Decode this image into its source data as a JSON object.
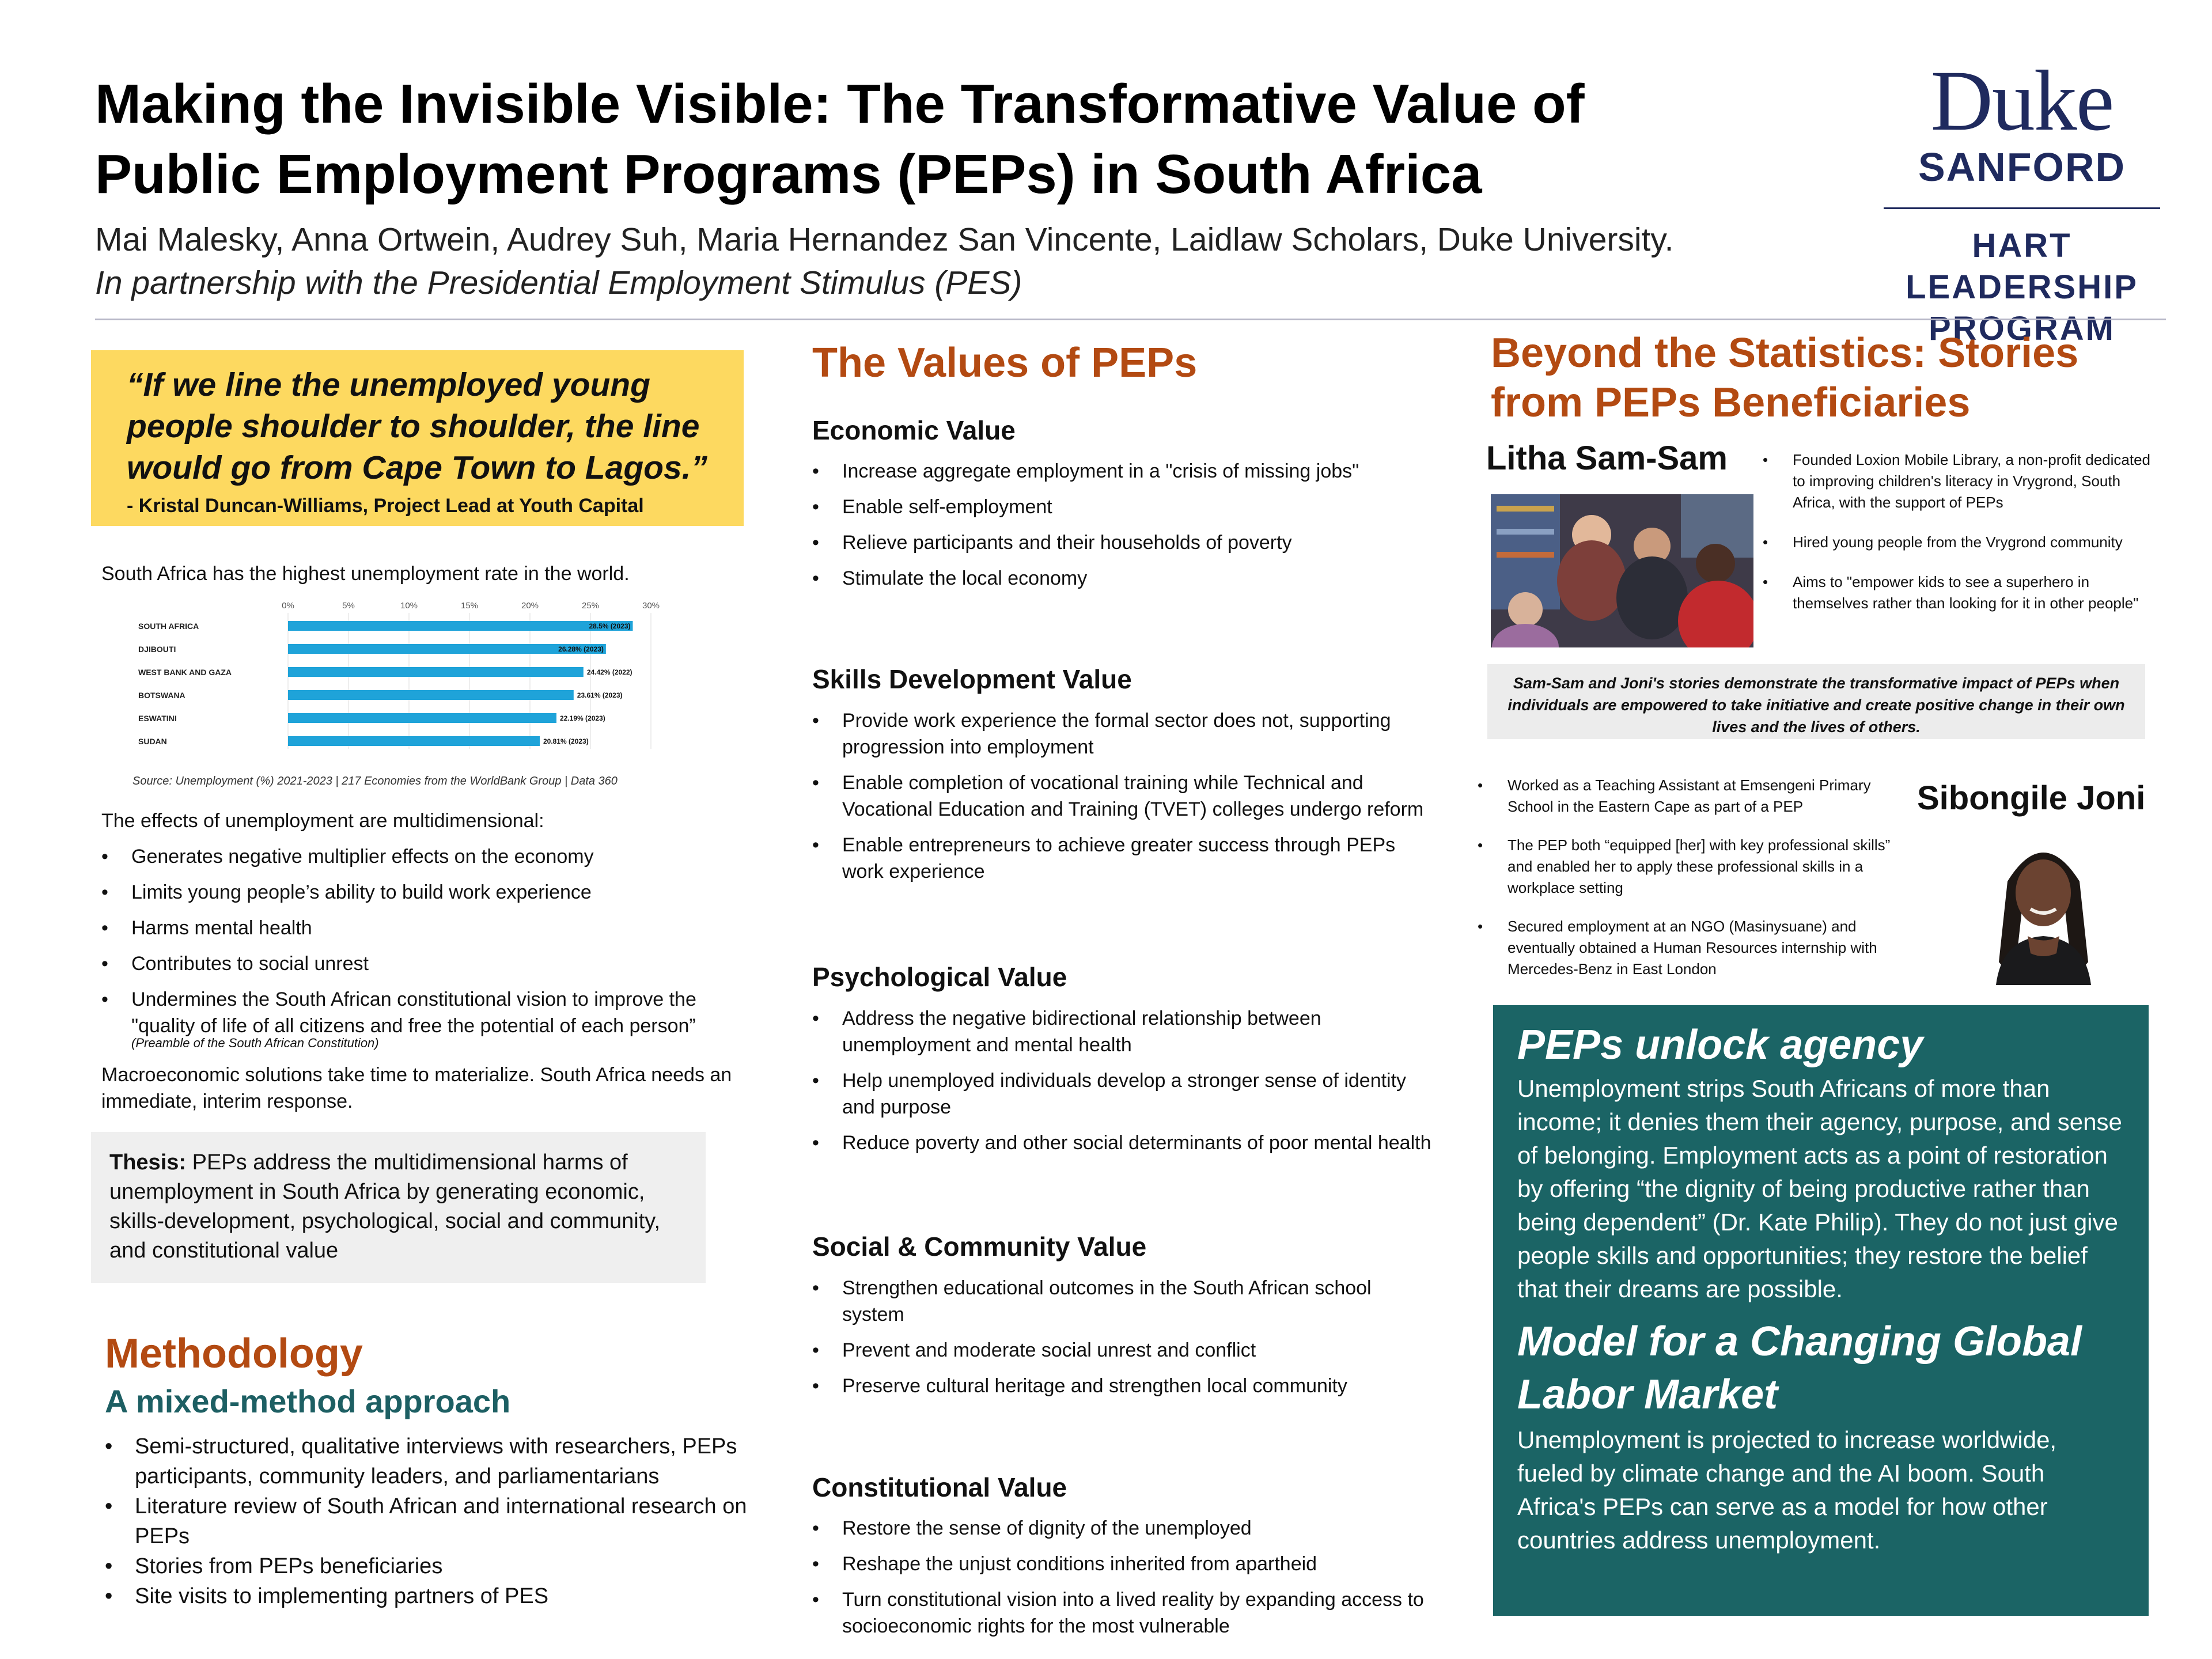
{
  "header": {
    "title": "Making the Invisible Visible: The Transformative Value of Public Employment Programs (PEPs) in South Africa",
    "authors": "Mai Malesky, Anna Ortwein, Audrey Suh, Maria Hernandez San Vincente, Laidlaw Scholars, Duke University.",
    "partnership": "In partnership with the Presidential Employment Stimulus (PES)"
  },
  "logo": {
    "duke": "Duke",
    "sanford": "SANFORD",
    "program_line1": "HART LEADERSHIP",
    "program_line2": "PROGRAM",
    "color": "#1f2a5e"
  },
  "left": {
    "quote": "“If we line the unemployed young people shoulder to shoulder, the line would go from Cape Town to Lagos.”",
    "quote_attribution": "- Kristal Duncan-Williams, Project Lead at Youth Capital",
    "intro": "South Africa has the highest unemployment rate in the world.",
    "chart_source": "Source: Unemployment (%) 2021-2023 | 217 Economies from the WorldBank Group | Data 360",
    "effects_intro": "The effects of unemployment are multidimensional:",
    "effects": [
      "Generates negative multiplier effects on the economy",
      "Limits young people’s ability to build work experience",
      "Harms mental health",
      "Contributes to social unrest",
      "Undermines the South African constitutional vision to improve the \"quality of life of all citizens and free the potential of each person”"
    ],
    "constitution_note": "(Preamble of the South African Constitution)",
    "macro": "Macroeconomic solutions take time to materialize. South Africa needs an immediate, interim response.",
    "thesis_label": "Thesis:",
    "thesis_text": " PEPs address the multidimensional harms of unemployment in South Africa by generating economic, skills-development, psychological, social and community, and constitutional value",
    "methodology_heading": "Methodology",
    "methodology_sub": "A mixed-method approach",
    "methods": [
      "Semi-structured, qualitative interviews with researchers, PEPs participants, community leaders, and parliamentarians",
      "Literature review of South African and international research on PEPs",
      "Stories from PEPs beneficiaries",
      "Site visits to implementing partners of PES"
    ],
    "colors": {
      "quote_bg": "#fdd960",
      "heading_orange": "#b34a12",
      "heading_teal": "#1d5f63",
      "bar": "#1fa3d9"
    }
  },
  "chart_data": {
    "type": "bar",
    "orientation": "horizontal",
    "categories": [
      "SOUTH AFRICA",
      "DJIBOUTI",
      "WEST BANK AND GAZA",
      "BOTSWANA",
      "ESWATINI",
      "SUDAN"
    ],
    "values": [
      28.5,
      26.28,
      24.42,
      23.61,
      22.19,
      20.81
    ],
    "data_labels": [
      "28.5% (2023)",
      "26.28% (2023)",
      "24.42% (2022)",
      "23.61% (2023)",
      "22.19% (2023)",
      "20.81% (2023)"
    ],
    "xticks": [
      "0%",
      "5%",
      "10%",
      "15%",
      "20%",
      "25%",
      "30%"
    ],
    "xlim": [
      0,
      30
    ],
    "title": "",
    "xlabel": "",
    "ylabel": ""
  },
  "middle": {
    "heading": "The Values of PEPs",
    "sections": [
      {
        "title": "Economic Value",
        "items": [
          "Increase aggregate employment in a \"crisis of missing jobs\"",
          "Enable self-employment",
          "Relieve participants and their households of poverty",
          "Stimulate the local economy"
        ]
      },
      {
        "title": "Skills Development Value",
        "items": [
          "Provide work experience the formal sector does not, supporting progression into employment",
          "Enable completion of vocational training while Technical and Vocational Education and Training (TVET) colleges undergo reform",
          "Enable entrepreneurs to achieve greater success through PEPs work experience"
        ]
      },
      {
        "title": "Psychological Value",
        "items": [
          "Address the negative bidirectional relationship between unemployment and mental health",
          "Help unemployed individuals develop a stronger sense of identity and purpose",
          "Reduce poverty and other social determinants of poor mental health"
        ]
      },
      {
        "title": "Social & Community Value",
        "items": [
          "Strengthen educational outcomes in the South African school system",
          "Prevent and moderate social unrest and conflict",
          "Preserve cultural heritage and strengthen local community"
        ]
      },
      {
        "title": "Constitutional Value",
        "items": [
          "Restore the sense of dignity of the unemployed",
          "Reshape the unjust conditions inherited from apartheid",
          "Turn constitutional vision into a lived reality by expanding access to socioeconomic rights for the most vulnerable"
        ]
      }
    ]
  },
  "right": {
    "heading": "Beyond the Statistics: Stories from PEPs Beneficiaries",
    "litha": {
      "name": "Litha Sam-Sam",
      "items": [
        "Founded Loxion Mobile Library, a non-profit dedicated to improving children's literacy in Vrygrond, South Africa, with the support of PEPs",
        "Hired young people from the Vrygrond community",
        "Aims to \"empower kids to see a superhero in themselves rather than looking for it in other people\""
      ]
    },
    "summary": "Sam-Sam and Joni's stories demonstrate the transformative impact of PEPs when individuals are empowered to take initiative and create positive change in their own lives and the lives of others.",
    "joni": {
      "name": "Sibongile Joni",
      "items": [
        "Worked as a Teaching Assistant at Emsengeni Primary School in the Eastern Cape as part of a PEP",
        "The PEP both “equipped [her] with key professional skills” and enabled her to apply these professional skills in a workplace setting",
        "Secured employment at an NGO (Masinysuane) and eventually obtained a Human Resources internship with Mercedes-Benz in East London"
      ]
    },
    "agency_heading": "PEPs unlock agency",
    "agency_text": "Unemployment strips South Africans of more than income; it denies them their agency, purpose, and sense of belonging. Employment acts as a point of restoration by offering “the dignity of being productive rather than being dependent” (Dr. Kate Philip). They do not just give people skills and opportunities; they restore the belief that their dreams are possible.",
    "model_heading": "Model for a Changing Global Labor Market",
    "model_text": "Unemployment is projected to increase worldwide, fueled by climate change and the AI boom. South Africa's PEPs can serve as a model for how other countries address unemployment.",
    "colors": {
      "agency_bg": "#1b6465",
      "summary_bg": "#ececec"
    }
  }
}
